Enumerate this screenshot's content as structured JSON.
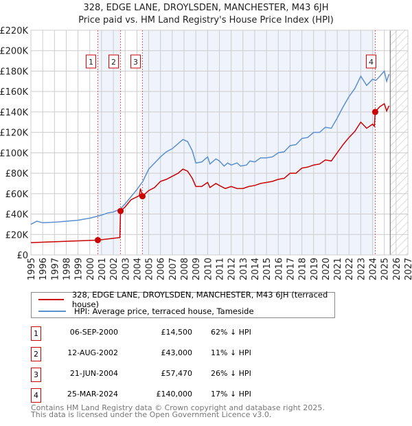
{
  "title": "328, EDGE LANE, DROYLSDEN, MANCHESTER, M43 6JH",
  "subtitle": "Price paid vs. HM Land Registry's House Price Index (HPI)",
  "chart_data": {
    "type": "line",
    "ylim": [
      0,
      220000
    ],
    "xlim": [
      1995,
      2027
    ],
    "yticks": [
      {
        "v": 0,
        "l": "£0"
      },
      {
        "v": 20000,
        "l": "£20K"
      },
      {
        "v": 40000,
        "l": "£40K"
      },
      {
        "v": 60000,
        "l": "£60K"
      },
      {
        "v": 80000,
        "l": "£80K"
      },
      {
        "v": 100000,
        "l": "£100K"
      },
      {
        "v": 120000,
        "l": "£120K"
      },
      {
        "v": 140000,
        "l": "£140K"
      },
      {
        "v": 160000,
        "l": "£160K"
      },
      {
        "v": 180000,
        "l": "£180K"
      },
      {
        "v": 200000,
        "l": "£200K"
      },
      {
        "v": 220000,
        "l": "£220K"
      }
    ],
    "xticks": [
      "1995",
      "1996",
      "1997",
      "1998",
      "1999",
      "2000",
      "2001",
      "2002",
      "2003",
      "2004",
      "2005",
      "2006",
      "2007",
      "2008",
      "2009",
      "2010",
      "2011",
      "2012",
      "2013",
      "2014",
      "2015",
      "2016",
      "2017",
      "2018",
      "2019",
      "2020",
      "2021",
      "2022",
      "2023",
      "2024",
      "2025",
      "2026",
      "2027"
    ],
    "forecast_from": 2025.5,
    "colors": {
      "property": "#cc0000",
      "hpi": "#5b8fd0",
      "shade": "#eef3fc"
    },
    "series": [
      {
        "name": "hpi",
        "points": [
          [
            1995,
            30
          ],
          [
            1995.5,
            33
          ],
          [
            1996,
            31.5
          ],
          [
            1997,
            32
          ],
          [
            1998,
            33
          ],
          [
            1999,
            34
          ],
          [
            2000,
            36
          ],
          [
            2000.7,
            38
          ],
          [
            2001,
            39
          ],
          [
            2001.5,
            41
          ],
          [
            2002,
            42
          ],
          [
            2002.6,
            45
          ],
          [
            2003,
            50
          ],
          [
            2003.5,
            57
          ],
          [
            2004,
            64
          ],
          [
            2004.5,
            72
          ],
          [
            2005,
            84
          ],
          [
            2005.5,
            90
          ],
          [
            2006,
            96
          ],
          [
            2006.5,
            101
          ],
          [
            2007,
            104
          ],
          [
            2007.5,
            109
          ],
          [
            2007.9,
            113
          ],
          [
            2008.3,
            111
          ],
          [
            2008.7,
            102
          ],
          [
            2009,
            90
          ],
          [
            2009.5,
            91
          ],
          [
            2010,
            96
          ],
          [
            2010.2,
            89
          ],
          [
            2010.7,
            94
          ],
          [
            2011,
            92
          ],
          [
            2011.4,
            87
          ],
          [
            2011.7,
            90
          ],
          [
            2012,
            88
          ],
          [
            2012.5,
            90
          ],
          [
            2012.8,
            87
          ],
          [
            2013.3,
            88
          ],
          [
            2013.6,
            92
          ],
          [
            2014,
            91
          ],
          [
            2014.5,
            95
          ],
          [
            2015,
            95
          ],
          [
            2015.5,
            96
          ],
          [
            2016,
            100
          ],
          [
            2016.5,
            101
          ],
          [
            2017,
            107
          ],
          [
            2017.5,
            108
          ],
          [
            2018,
            114
          ],
          [
            2018.5,
            115
          ],
          [
            2019,
            120
          ],
          [
            2019.5,
            120
          ],
          [
            2020,
            125
          ],
          [
            2020.5,
            124
          ],
          [
            2021,
            134
          ],
          [
            2021.5,
            145
          ],
          [
            2022,
            155
          ],
          [
            2022.5,
            163
          ],
          [
            2023,
            175
          ],
          [
            2023.5,
            166
          ],
          [
            2024,
            172
          ],
          [
            2024.3,
            171
          ],
          [
            2024.7,
            176
          ],
          [
            2025,
            180
          ],
          [
            2025.2,
            170
          ],
          [
            2025.4,
            177
          ]
        ]
      },
      {
        "name": "property",
        "points": [
          [
            1995,
            12
          ],
          [
            2000.68,
            14.5
          ],
          [
            2002.55,
            17
          ],
          [
            2002.61,
            43
          ],
          [
            2003,
            47
          ],
          [
            2003.5,
            54
          ],
          [
            2004.2,
            58
          ],
          [
            2004.3,
            65
          ],
          [
            2004.47,
            57.47
          ],
          [
            2005,
            63
          ],
          [
            2005.5,
            66
          ],
          [
            2006,
            72
          ],
          [
            2006.5,
            74
          ],
          [
            2007,
            77
          ],
          [
            2007.5,
            80
          ],
          [
            2007.9,
            84
          ],
          [
            2008.3,
            82
          ],
          [
            2008.7,
            75
          ],
          [
            2009,
            67
          ],
          [
            2009.5,
            67
          ],
          [
            2010,
            71
          ],
          [
            2010.2,
            66
          ],
          [
            2010.7,
            70
          ],
          [
            2011,
            68
          ],
          [
            2011.5,
            65
          ],
          [
            2012,
            67
          ],
          [
            2012.5,
            65
          ],
          [
            2013,
            65
          ],
          [
            2013.5,
            67
          ],
          [
            2014,
            68
          ],
          [
            2014.5,
            70
          ],
          [
            2015,
            71
          ],
          [
            2015.5,
            72
          ],
          [
            2016,
            74
          ],
          [
            2016.5,
            75
          ],
          [
            2017,
            80
          ],
          [
            2017.5,
            80
          ],
          [
            2018,
            85
          ],
          [
            2018.5,
            86
          ],
          [
            2019,
            88
          ],
          [
            2019.5,
            89
          ],
          [
            2020,
            93
          ],
          [
            2020.5,
            92
          ],
          [
            2021,
            100
          ],
          [
            2021.5,
            108
          ],
          [
            2022,
            115
          ],
          [
            2022.5,
            121
          ],
          [
            2023,
            130
          ],
          [
            2023.5,
            124
          ],
          [
            2024,
            128
          ],
          [
            2024.15,
            126
          ],
          [
            2024.23,
            140
          ],
          [
            2024.6,
            145
          ],
          [
            2025,
            148
          ],
          [
            2025.2,
            141
          ],
          [
            2025.4,
            146
          ]
        ]
      }
    ],
    "sales": [
      {
        "n": "1",
        "x": 2000.68,
        "y": 14.5
      },
      {
        "n": "2",
        "x": 2002.61,
        "y": 43
      },
      {
        "n": "3",
        "x": 2004.47,
        "y": 57.47
      },
      {
        "n": "4",
        "x": 2024.23,
        "y": 140
      }
    ]
  },
  "legend": {
    "property": "328, EDGE LANE, DROYLSDEN, MANCHESTER, M43 6JH (terraced house)",
    "hpi": "HPI: Average price, terraced house, Tameside"
  },
  "transactions": [
    {
      "n": "1",
      "date": "06-SEP-2000",
      "price": "£14,500",
      "hpi": "62% ↓ HPI"
    },
    {
      "n": "2",
      "date": "12-AUG-2002",
      "price": "£43,000",
      "hpi": "11% ↓ HPI"
    },
    {
      "n": "3",
      "date": "21-JUN-2004",
      "price": "£57,470",
      "hpi": "26% ↓ HPI"
    },
    {
      "n": "4",
      "date": "25-MAR-2024",
      "price": "£140,000",
      "hpi": "17% ↓ HPI"
    }
  ],
  "footer": {
    "line1": "Contains HM Land Registry data © Crown copyright and database right 2025.",
    "line2": "This data is licensed under the Open Government Licence v3.0."
  }
}
